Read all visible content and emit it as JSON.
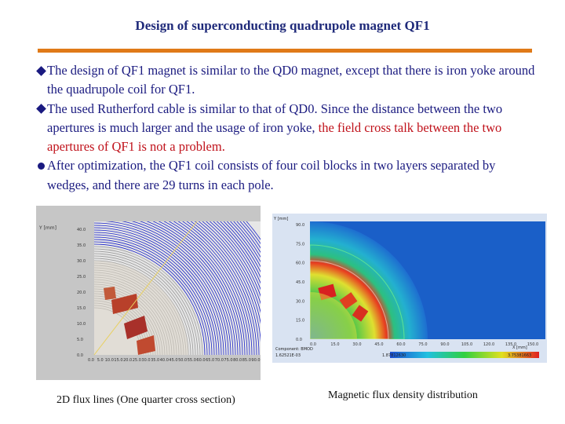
{
  "slide": {
    "title": "Design of superconducting quadrupole magnet QF1",
    "accent_color": "#e07a18",
    "text_color": "#1b1b80",
    "highlight_color": "#c0121b"
  },
  "bullets": [
    {
      "marker": "diamond",
      "text": "The design of QF1 magnet is similar to the QD0 magnet, except that there is iron yoke around the quadrupole coil for QF1."
    },
    {
      "marker": "diamond",
      "text_before": "The used Rutherford cable is similar to that of QD0. Since the distance between the two apertures is much larger and the usage of iron yoke, ",
      "text_red": "the field cross talk between the two apertures of QF1 is not a problem."
    },
    {
      "marker": "circle",
      "text": "After optimization, the QF1 coil consists of four coil blocks in two layers separated by wedges, and there are 29 turns in each pole."
    }
  ],
  "figures": {
    "left": {
      "caption": "2D flux lines (One quarter cross section)",
      "y_axis_label": "Y [mm]",
      "y_ticks": [
        "40.0",
        "35.0",
        "30.0",
        "25.0",
        "20.0",
        "15.0",
        "10.0",
        "5.0",
        "0.0"
      ],
      "x_ticks": [
        "0.0",
        "5.0",
        "10.0",
        "15.0",
        "20.0",
        "25.0",
        "30.0",
        "35.0",
        "40.0",
        "45.0",
        "50.0",
        "55.0",
        "60.0",
        "65.0",
        "70.0",
        "75.0",
        "80.0",
        "85.0",
        "90.0"
      ]
    },
    "right": {
      "caption": "Magnetic flux density distribution",
      "y_axis_label": "Y [mm]",
      "x_axis_label": "X [mm]",
      "y_ticks": [
        "90.0",
        "75.0",
        "60.0",
        "45.0",
        "30.0",
        "15.0",
        "0.0"
      ],
      "x_ticks": [
        "0.0",
        "15.0",
        "30.0",
        "45.0",
        "60.0",
        "75.0",
        "90.0",
        "105.0",
        "120.0",
        "135.0",
        "150.0"
      ],
      "colorbar_label": "Component: BMOD",
      "colorbar_min": "1.62521E-03",
      "colorbar_mid": "1.87812630",
      "colorbar_max": "3.75381663"
    }
  }
}
